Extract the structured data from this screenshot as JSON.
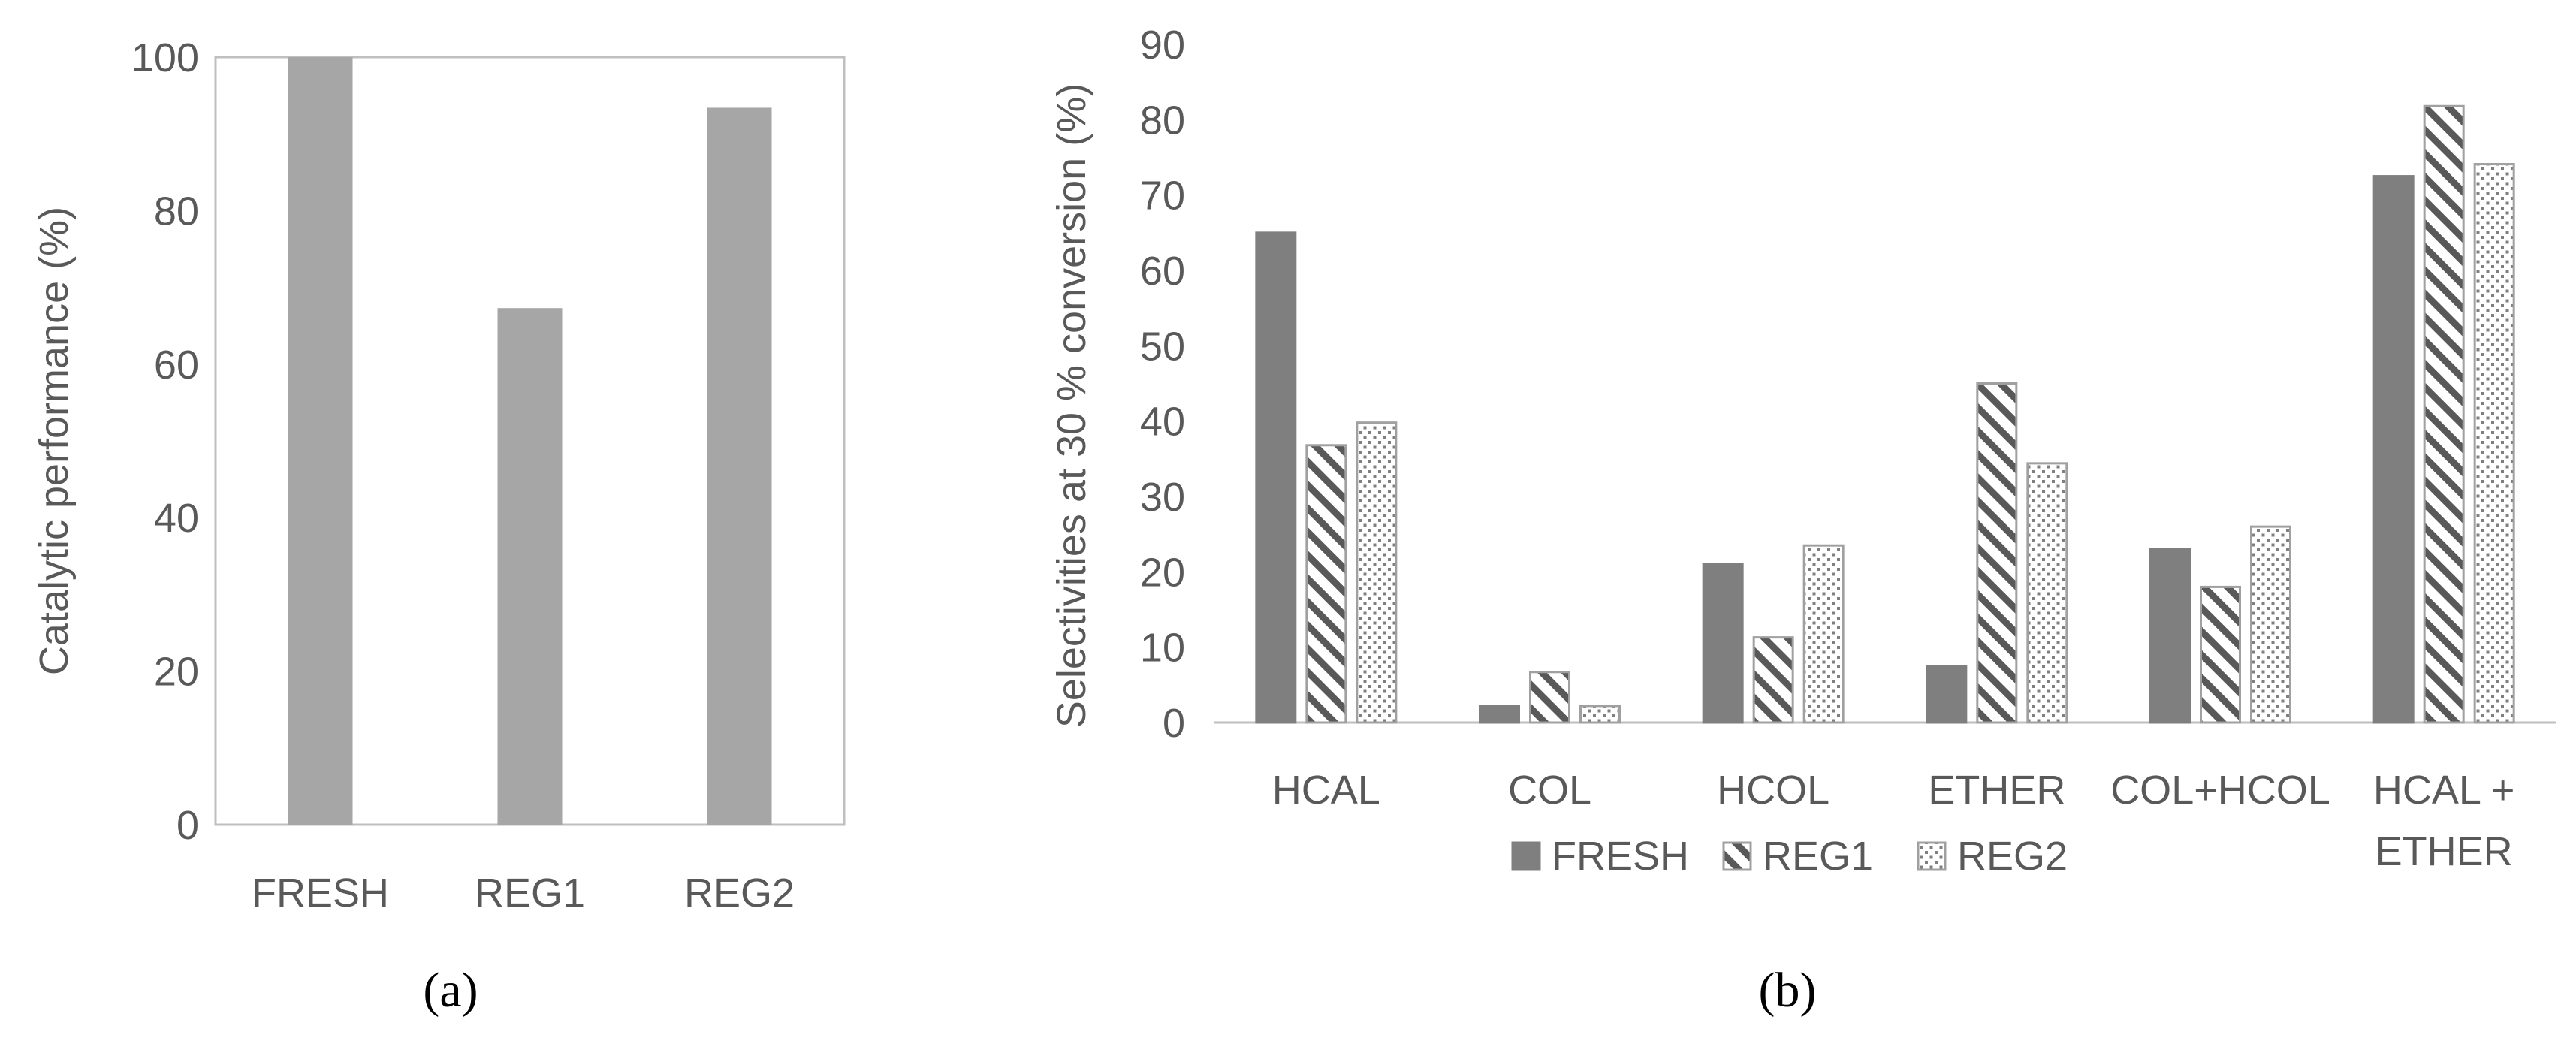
{
  "colors": {
    "axis": "#bfbfbf",
    "text": "#595959",
    "bar_a": "#a6a6a6",
    "fresh": "#7f7f7f",
    "pattern_stroke": "#595959",
    "outline": "#a0a0a0"
  },
  "chart_data": [
    {
      "type": "bar",
      "panel_label": "(a)",
      "title": "",
      "xlabel": "",
      "ylabel": "Catalytic performance (%)",
      "categories": [
        "FRESH",
        "REG1",
        "REG2"
      ],
      "values": [
        100,
        67.3,
        93.4
      ],
      "ylim": [
        0,
        100
      ],
      "yticks": [
        0,
        20,
        40,
        60,
        80,
        100
      ],
      "grid": false,
      "legend": "none"
    },
    {
      "type": "bar",
      "panel_label": "(b)",
      "title": "",
      "xlabel": "",
      "ylabel": "Selectivities at 30 % conversion (%)",
      "categories": [
        "HCAL",
        "COL",
        "HCOL",
        "ETHER",
        "COL+HCOL",
        "HCAL + ETHER"
      ],
      "series": [
        {
          "name": "FRESH",
          "fill": "solid",
          "values": [
            65,
            2.2,
            21,
            7.5,
            23,
            72.5
          ]
        },
        {
          "name": "REG1",
          "fill": "diagonal",
          "values": [
            36.8,
            6.7,
            11.3,
            45,
            18,
            81.8
          ]
        },
        {
          "name": "REG2",
          "fill": "dotted",
          "values": [
            39.8,
            2.2,
            23.5,
            34.4,
            26,
            74.1
          ]
        }
      ],
      "ylim": [
        0,
        90
      ],
      "yticks": [
        0,
        10,
        20,
        30,
        40,
        50,
        60,
        70,
        80,
        90
      ],
      "grid": false,
      "legend": "bottom"
    }
  ]
}
